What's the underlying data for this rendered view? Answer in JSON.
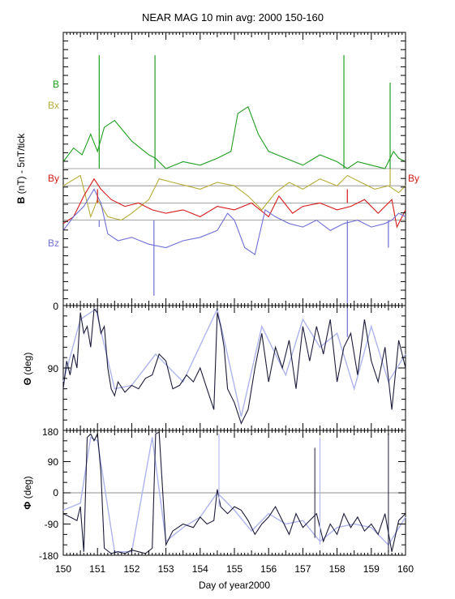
{
  "chart_data": {
    "type": "line",
    "title": "NEAR MAG 10 min avg: 2000 150-160",
    "xlabel": "Day of year2000",
    "x_range": [
      150,
      160
    ],
    "x_ticks": [
      "150",
      "151",
      "152",
      "153",
      "154",
      "155",
      "156",
      "157",
      "158",
      "159",
      "160"
    ],
    "panels": [
      {
        "id": "b",
        "ylabel_bold": "B",
        "ylabel_rest": "(nT) - 5nT/tick",
        "y_ticks": [
          "0"
        ],
        "series": [
          {
            "name": "B",
            "color": "#1f9e1f",
            "baseline": 0.0,
            "x": [
              150.0,
              150.3,
              150.55,
              150.8,
              151.0,
              151.2,
              151.5,
              152.0,
              152.5,
              152.7,
              153.0,
              153.5,
              154.0,
              154.5,
              154.9,
              155.1,
              155.4,
              155.7,
              156.0,
              156.5,
              157.0,
              157.5,
              158.0,
              158.3,
              158.6,
              159.0,
              159.4,
              159.65,
              159.8,
              160.0
            ],
            "y": [
              0.4,
              1.2,
              0.8,
              2.0,
              1.0,
              2.4,
              2.8,
              1.6,
              0.8,
              0.6,
              0.0,
              0.4,
              0.2,
              0.6,
              1.0,
              3.2,
              3.6,
              2.0,
              1.0,
              0.6,
              0.2,
              0.8,
              0.4,
              0.0,
              0.4,
              0.2,
              0.0,
              1.0,
              0.6,
              0.4
            ]
          },
          {
            "name": "Bx",
            "color": "#b5ad3a",
            "baseline": -1.0,
            "x": [
              150.0,
              150.5,
              150.8,
              151.0,
              151.3,
              151.7,
              152.0,
              152.5,
              152.8,
              153.2,
              153.6,
              154.0,
              154.5,
              155.0,
              155.4,
              155.8,
              156.2,
              156.6,
              157.0,
              157.5,
              158.0,
              158.3,
              158.7,
              159.1,
              159.5,
              159.8,
              160.0
            ],
            "y": [
              0.0,
              0.6,
              -1.8,
              -0.8,
              -1.8,
              -2.0,
              -1.6,
              -0.8,
              0.4,
              0.2,
              0.0,
              -0.2,
              0.2,
              0.0,
              -0.6,
              -1.4,
              -0.4,
              0.2,
              -0.2,
              0.4,
              0.0,
              0.6,
              0.2,
              -0.2,
              0.0,
              -0.4,
              0.0
            ]
          },
          {
            "name": "By",
            "color": "#d41919",
            "baseline": -2.0,
            "x": [
              150.0,
              150.3,
              150.6,
              150.9,
              151.1,
              151.4,
              151.8,
              152.2,
              152.6,
              153.0,
              153.5,
              154.0,
              154.5,
              155.0,
              155.5,
              156.0,
              156.3,
              156.7,
              157.0,
              157.5,
              158.0,
              158.4,
              158.8,
              159.2,
              159.6,
              159.75,
              160.0
            ],
            "y": [
              -1.2,
              -0.8,
              0.4,
              1.4,
              0.8,
              0.2,
              -0.2,
              0.0,
              -0.4,
              -0.6,
              -0.4,
              -0.8,
              -0.2,
              -0.4,
              0.0,
              -0.8,
              0.4,
              -0.6,
              -0.2,
              0.0,
              -0.4,
              -0.2,
              0.2,
              -0.6,
              0.2,
              -1.4,
              -0.4
            ]
          },
          {
            "name": "Bz",
            "color": "#6f6fd6",
            "baseline": -3.0,
            "x": [
              150.0,
              150.3,
              150.6,
              150.9,
              151.1,
              151.3,
              151.6,
              152.0,
              152.5,
              153.0,
              153.5,
              154.0,
              154.5,
              154.8,
              155.0,
              155.3,
              155.6,
              155.9,
              156.2,
              156.6,
              157.0,
              157.4,
              157.8,
              158.2,
              158.6,
              159.0,
              159.4,
              159.6,
              159.8,
              160.0
            ],
            "y": [
              -0.6,
              0.2,
              0.8,
              1.8,
              1.0,
              -0.8,
              -1.2,
              -1.0,
              -1.4,
              -1.6,
              -1.2,
              -1.0,
              -0.6,
              0.4,
              0.0,
              -1.6,
              -2.0,
              0.6,
              0.2,
              -0.2,
              -0.4,
              0.0,
              -0.6,
              -0.2,
              0.0,
              -0.4,
              -0.2,
              0.0,
              0.4,
              0.2
            ]
          }
        ],
        "spikes": [
          {
            "color": "#1f9e1f",
            "x": 151.05,
            "to": 6.6
          },
          {
            "color": "#1f9e1f",
            "x": 152.68,
            "to": 6.6
          },
          {
            "color": "#1f9e1f",
            "x": 158.2,
            "to": 6.6
          },
          {
            "color": "#1f9e1f",
            "x": 159.55,
            "to": 5.0
          },
          {
            "color": "#b5ad3a",
            "x": 159.55,
            "to": 1.0
          },
          {
            "color": "#d41919",
            "x": 151.0,
            "to": 0.8
          },
          {
            "color": "#d41919",
            "x": 158.3,
            "to": 0.8
          },
          {
            "color": "#6f6fd6",
            "x": 151.05,
            "to": -0.4
          },
          {
            "color": "#6f6fd6",
            "x": 152.65,
            "to": -4.4
          },
          {
            "color": "#6f6fd6",
            "x": 158.3,
            "to": -6.8
          },
          {
            "color": "#6f6fd6",
            "x": 159.5,
            "to": -1.6
          }
        ]
      },
      {
        "id": "theta",
        "ylabel_symbol": "Θ",
        "ylabel_rest": "(deg)",
        "ylim": [
          180,
          0
        ],
        "y_ticks": [
          "0",
          "90",
          "180"
        ],
        "series": [
          {
            "name": "",
            "color": "#1c1c3a",
            "x": [
              150.0,
              150.1,
              150.2,
              150.3,
              150.4,
              150.5,
              150.6,
              150.7,
              150.8,
              150.9,
              151.0,
              151.1,
              151.2,
              151.3,
              151.4,
              151.5,
              151.6,
              151.8,
              152.0,
              152.2,
              152.4,
              152.6,
              152.8,
              153.0,
              153.2,
              153.4,
              153.6,
              153.8,
              154.0,
              154.2,
              154.4,
              154.5,
              154.6,
              154.7,
              154.8,
              155.0,
              155.2,
              155.4,
              155.6,
              155.8,
              156.0,
              156.2,
              156.4,
              156.6,
              156.8,
              157.0,
              157.2,
              157.4,
              157.6,
              157.8,
              158.0,
              158.2,
              158.4,
              158.6,
              158.8,
              159.0,
              159.2,
              159.4,
              159.6,
              159.8,
              160.0
            ],
            "y": [
              120,
              80,
              100,
              70,
              90,
              10,
              40,
              30,
              60,
              5,
              10,
              40,
              30,
              90,
              120,
              130,
              110,
              125,
              115,
              120,
              105,
              100,
              70,
              80,
              120,
              115,
              100,
              110,
              90,
              120,
              150,
              10,
              30,
              60,
              120,
              140,
              170,
              150,
              90,
              40,
              110,
              60,
              90,
              50,
              120,
              30,
              80,
              30,
              70,
              20,
              110,
              60,
              40,
              100,
              20,
              80,
              110,
              60,
              150,
              50,
              90
            ]
          },
          {
            "name": "",
            "color": "#aeb4ee",
            "x": [
              150.0,
              150.5,
              150.95,
              151.5,
              152.0,
              152.7,
              153.5,
              154.5,
              155.2,
              155.8,
              156.5,
              157.0,
              157.5,
              158.0,
              158.5,
              159.0,
              159.5,
              160.0
            ],
            "y": [
              110,
              20,
              5,
              120,
              115,
              70,
              110,
              5,
              160,
              30,
              100,
              20,
              60,
              40,
              120,
              30,
              110,
              70
            ]
          }
        ]
      },
      {
        "id": "phi",
        "ylabel_symbol": "Φ",
        "ylabel_rest": "(deg)",
        "ylim": [
          -180,
          180
        ],
        "y_ticks": [
          "-180",
          "-90",
          "0",
          "90",
          "180"
        ],
        "series": [
          {
            "name": "",
            "color": "#1c1c3a",
            "x": [
              150.0,
              150.2,
              150.4,
              150.5,
              150.6,
              150.7,
              150.8,
              150.9,
              151.0,
              151.1,
              151.2,
              151.4,
              151.6,
              151.8,
              152.0,
              152.2,
              152.4,
              152.6,
              152.7,
              152.8,
              153.0,
              153.2,
              153.5,
              153.8,
              154.0,
              154.2,
              154.4,
              154.5,
              154.6,
              154.8,
              155.0,
              155.2,
              155.4,
              155.6,
              155.8,
              156.0,
              156.2,
              156.4,
              156.6,
              156.8,
              157.0,
              157.2,
              157.4,
              157.6,
              157.8,
              158.0,
              158.2,
              158.4,
              158.6,
              158.8,
              159.0,
              159.2,
              159.4,
              159.6,
              159.8,
              160.0
            ],
            "y": [
              -60,
              -70,
              -80,
              -40,
              -170,
              160,
              170,
              150,
              170,
              60,
              -160,
              -175,
              -170,
              -175,
              -165,
              -170,
              -175,
              -160,
              170,
              175,
              -150,
              -110,
              -90,
              -100,
              -70,
              -90,
              -80,
              10,
              -40,
              -60,
              -40,
              -50,
              -80,
              -120,
              -90,
              -70,
              -40,
              -80,
              -120,
              -60,
              -100,
              -80,
              -60,
              -140,
              -90,
              -120,
              -60,
              -100,
              -70,
              -110,
              -90,
              -120,
              -60,
              -170,
              -80,
              -60
            ]
          },
          {
            "name": "",
            "color": "#aeb4ee",
            "x": [
              150.0,
              150.5,
              150.8,
              151.0,
              151.5,
              152.0,
              152.6,
              153.0,
              153.5,
              154.0,
              154.5,
              155.0,
              155.5,
              156.0,
              156.5,
              157.0,
              157.5,
              158.0,
              158.5,
              159.0,
              159.5,
              160.0
            ],
            "y": [
              -50,
              -30,
              160,
              150,
              -170,
              -170,
              160,
              -140,
              -100,
              -70,
              0,
              -50,
              -110,
              -60,
              -90,
              -80,
              -140,
              -100,
              -90,
              -100,
              -150,
              -70
            ]
          }
        ],
        "spikes": [
          {
            "color": "#aeb4ee",
            "x": 154.55,
            "from": -40,
            "to": 170
          },
          {
            "color": "#aeb4ee",
            "x": 157.5,
            "from": -150,
            "to": 160
          },
          {
            "color": "#1c1c3a",
            "x": 157.35,
            "from": -130,
            "to": 130
          },
          {
            "color": "#1c1c3a",
            "x": 159.5,
            "from": -170,
            "to": 170
          }
        ]
      }
    ]
  }
}
